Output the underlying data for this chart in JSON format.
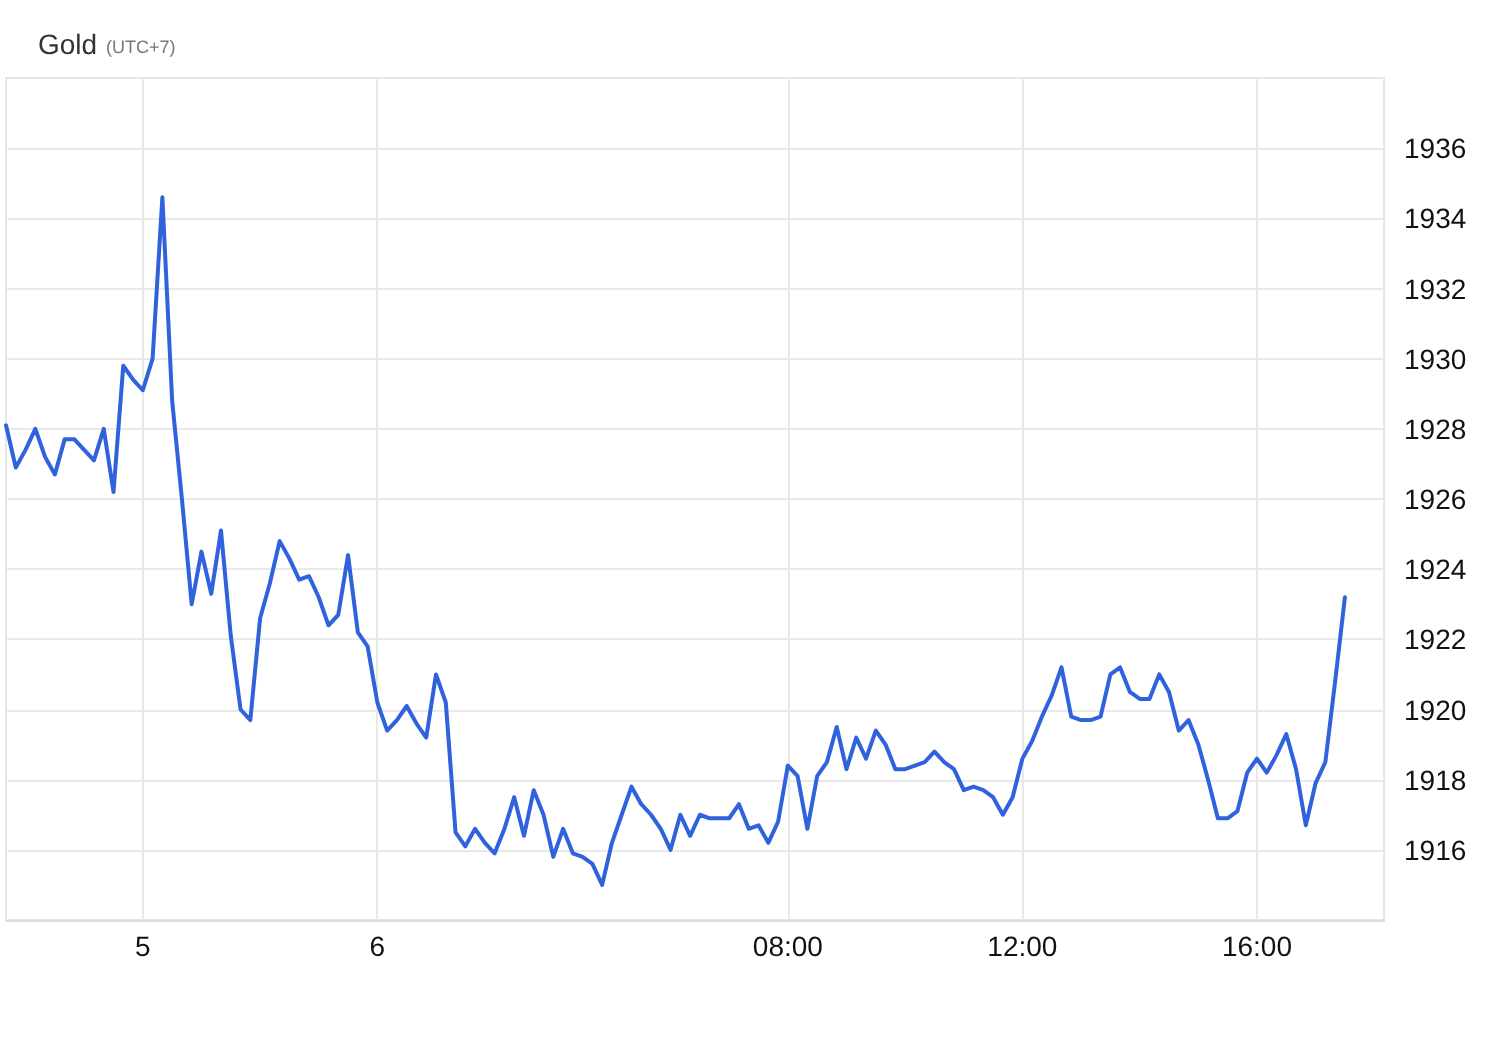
{
  "chart_data": {
    "type": "line",
    "title": "Gold",
    "subtitle": "(UTC+7)",
    "categories": [
      null,
      null,
      null,
      null,
      null,
      null,
      null,
      null,
      null,
      null,
      null,
      null,
      null,
      null,
      "5",
      null,
      null,
      null,
      null,
      null,
      null,
      null,
      null,
      null,
      null,
      null,
      null,
      null,
      null,
      null,
      null,
      null,
      null,
      null,
      null,
      null,
      null,
      null,
      "6",
      null,
      null,
      null,
      null,
      null,
      null,
      null,
      null,
      null,
      null,
      null,
      null,
      null,
      null,
      null,
      null,
      null,
      null,
      null,
      null,
      null,
      null,
      null,
      null,
      null,
      null,
      null,
      null,
      null,
      null,
      null,
      null,
      null,
      null,
      null,
      null,
      null,
      null,
      null,
      null,
      null,
      "08:00",
      null,
      null,
      null,
      null,
      null,
      null,
      null,
      null,
      null,
      null,
      null,
      null,
      null,
      null,
      null,
      null,
      null,
      null,
      null,
      null,
      null,
      null,
      null,
      "12:00",
      null,
      null,
      null,
      null,
      null,
      null,
      null,
      null,
      null,
      null,
      null,
      null,
      null,
      null,
      null,
      null,
      null,
      null,
      null,
      null,
      null,
      null,
      null,
      "16:00",
      null,
      null,
      null,
      null,
      null,
      null,
      null,
      null,
      null,
      null,
      null,
      null,
      null
    ],
    "ylim": [
      1914,
      1938
    ],
    "yticks": [
      1916,
      1918,
      1920,
      1922,
      1924,
      1926,
      1928,
      1930,
      1932,
      1934,
      1936
    ],
    "grid": true,
    "legend": false,
    "marker": "none",
    "line_style": "solid",
    "series": [
      {
        "color": "#2f62dc",
        "values": [
          1928.1,
          1926.9,
          1927.4,
          1928.0,
          1927.2,
          1926.7,
          1927.7,
          1927.7,
          1927.4,
          1927.1,
          1928.0,
          1926.2,
          1929.8,
          1929.4,
          1929.1,
          1930.0,
          1934.6,
          1928.8,
          1926.0,
          1923.0,
          1924.5,
          1923.3,
          1925.1,
          1922.1,
          1920.0,
          1919.7,
          1922.6,
          1923.6,
          1924.8,
          1924.3,
          1923.7,
          1923.8,
          1923.2,
          1922.4,
          1922.7,
          1924.4,
          1922.2,
          1921.8,
          1920.2,
          1919.4,
          1919.7,
          1920.1,
          1919.6,
          1919.2,
          1921.0,
          1920.2,
          1916.5,
          1916.1,
          1916.6,
          1916.2,
          1915.9,
          1916.6,
          1917.5,
          1916.4,
          1917.7,
          1917.0,
          1915.8,
          1916.6,
          1915.9,
          1915.8,
          1915.6,
          1915.0,
          1916.2,
          1917.0,
          1917.8,
          1917.3,
          1917.0,
          1916.6,
          1916.0,
          1917.0,
          1916.4,
          1917.0,
          1916.9,
          1916.9,
          1916.9,
          1917.3,
          1916.6,
          1916.7,
          1916.2,
          1916.8,
          1918.4,
          1918.1,
          1916.6,
          1918.1,
          1918.5,
          1919.5,
          1918.3,
          1919.2,
          1918.6,
          1919.4,
          1919.0,
          1918.3,
          1918.3,
          1918.4,
          1918.5,
          1918.8,
          1918.5,
          1918.3,
          1917.7,
          1917.8,
          1917.7,
          1917.5,
          1917.0,
          1917.5,
          1918.6,
          1919.1,
          1919.8,
          1920.4,
          1921.2,
          1919.8,
          1919.7,
          1919.7,
          1919.8,
          1921.0,
          1921.2,
          1920.5,
          1920.3,
          1920.3,
          1921.0,
          1920.5,
          1919.4,
          1919.7,
          1919.0,
          1918.0,
          1916.9,
          1916.9,
          1917.1,
          1918.2,
          1918.6,
          1918.2,
          1918.7,
          1919.3,
          1918.3,
          1916.7,
          1917.9,
          1918.5,
          1920.8,
          1923.2,
          null,
          null,
          null,
          null
        ]
      }
    ]
  }
}
